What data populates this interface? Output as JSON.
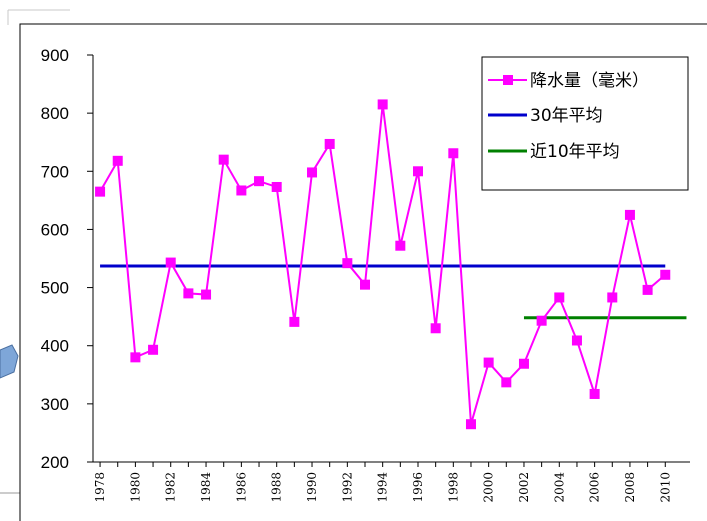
{
  "chart_data": {
    "type": "line",
    "x": [
      1978,
      1979,
      1980,
      1981,
      1982,
      1983,
      1984,
      1985,
      1986,
      1987,
      1988,
      1989,
      1990,
      1991,
      1992,
      1993,
      1994,
      1995,
      1996,
      1997,
      1998,
      1999,
      2000,
      2001,
      2002,
      2003,
      2004,
      2005,
      2006,
      2007,
      2008,
      2009,
      2010
    ],
    "x_tick_labels": [
      "1978",
      "1980",
      "1982",
      "1984",
      "1986",
      "1988",
      "1990",
      "1992",
      "1994",
      "1996",
      "1998",
      "2000",
      "2002",
      "2004",
      "2006",
      "2008",
      "2010"
    ],
    "y_tick_labels": [
      "900",
      "800",
      "700",
      "600",
      "500",
      "400",
      "300",
      "200"
    ],
    "ylim": [
      200,
      900
    ],
    "xlim": [
      1977.6,
      2011.4
    ],
    "series": [
      {
        "name": "降水量（毫米）",
        "color": "#ff00ff",
        "marker": "square",
        "values": [
          665,
          718,
          380,
          393,
          543,
          490,
          488,
          720,
          667,
          683,
          673,
          441,
          698,
          747,
          542,
          505,
          815,
          572,
          700,
          430,
          731,
          265,
          371,
          337,
          369,
          443,
          483,
          409,
          317,
          483,
          625,
          496,
          522
        ]
      },
      {
        "name": "30年平均",
        "color": "#0000cc",
        "x_range": [
          1978,
          2010
        ],
        "value": 537
      },
      {
        "name": "近10年平均",
        "color": "#008000",
        "x_range": [
          2002,
          2011.2
        ],
        "value": 448
      }
    ],
    "grid": false,
    "legend_position": "top-right"
  }
}
